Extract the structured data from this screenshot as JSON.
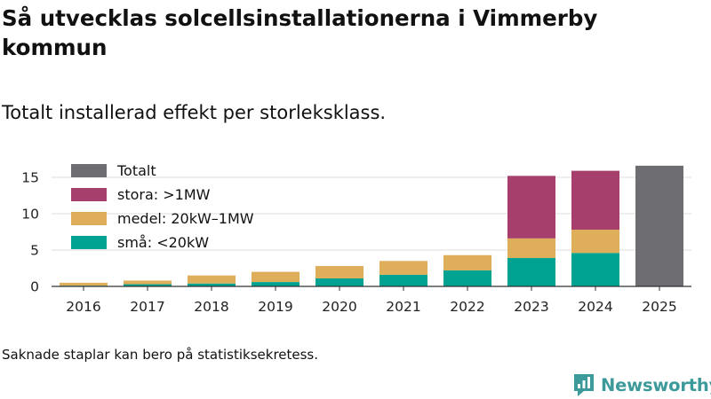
{
  "title": "Så utvecklas solcellsinstallationerna i Vimmerby kommun",
  "subtitle": "Totalt installerad effekt per storleksklass.",
  "footnote": "Saknade staplar kan bero på statistiksekretess.",
  "brand": {
    "name": "Newsworthy",
    "icon": "newsworthy-logo-icon",
    "color": "#3d9a9b"
  },
  "chart_data": {
    "type": "bar",
    "stacked": true,
    "categories": [
      "2016",
      "2017",
      "2018",
      "2019",
      "2020",
      "2021",
      "2022",
      "2023",
      "2024",
      "2025"
    ],
    "series": [
      {
        "name": "små: <20kW",
        "key": "sma",
        "color": "#00a392",
        "values": [
          0.1,
          0.3,
          0.4,
          0.6,
          1.1,
          1.6,
          2.2,
          3.9,
          4.6,
          null
        ]
      },
      {
        "name": "medel: 20kW–1MW",
        "key": "medel",
        "color": "#dfae5a",
        "values": [
          0.4,
          0.5,
          1.1,
          1.4,
          1.7,
          1.9,
          2.1,
          2.7,
          3.2,
          null
        ]
      },
      {
        "name": "stora: >1MW",
        "key": "stora",
        "color": "#a63f6b",
        "values": [
          null,
          null,
          null,
          null,
          null,
          null,
          null,
          8.6,
          8.1,
          null
        ]
      },
      {
        "name": "Totalt",
        "key": "totalt",
        "color": "#6d6d72",
        "values": [
          null,
          null,
          null,
          null,
          null,
          null,
          null,
          null,
          null,
          16.6
        ]
      }
    ],
    "legend_order": [
      "totalt",
      "stora",
      "medel",
      "sma"
    ],
    "legend_position": "top-left",
    "yticks": [
      0,
      5,
      10,
      15
    ],
    "ylim": [
      0,
      17
    ],
    "grid": true,
    "xlabel": "",
    "ylabel": ""
  }
}
